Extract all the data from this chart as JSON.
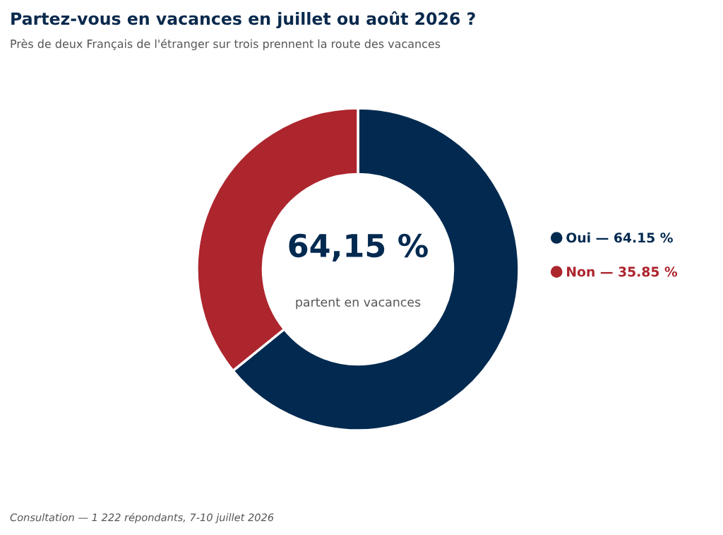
{
  "chart_data": {
    "type": "donut",
    "title": "Partez-vous en vacances en juillet ou août 2026 ?",
    "subtitle": "Près de deux Français de l'étranger sur trois prennent la route des vacances",
    "categories": [
      "Oui",
      "Non"
    ],
    "values": [
      64.15,
      35.85
    ],
    "colors": [
      "#022a50",
      "#ad252d"
    ],
    "value_labels": [
      "— 64.15 %",
      "— 35.85 %"
    ],
    "legend": "right",
    "annotations": [
      "64,15 %",
      "partent en vacances",
      "Consultation — 1 222 répondants, 7-10 juillet 2026"
    ]
  }
}
